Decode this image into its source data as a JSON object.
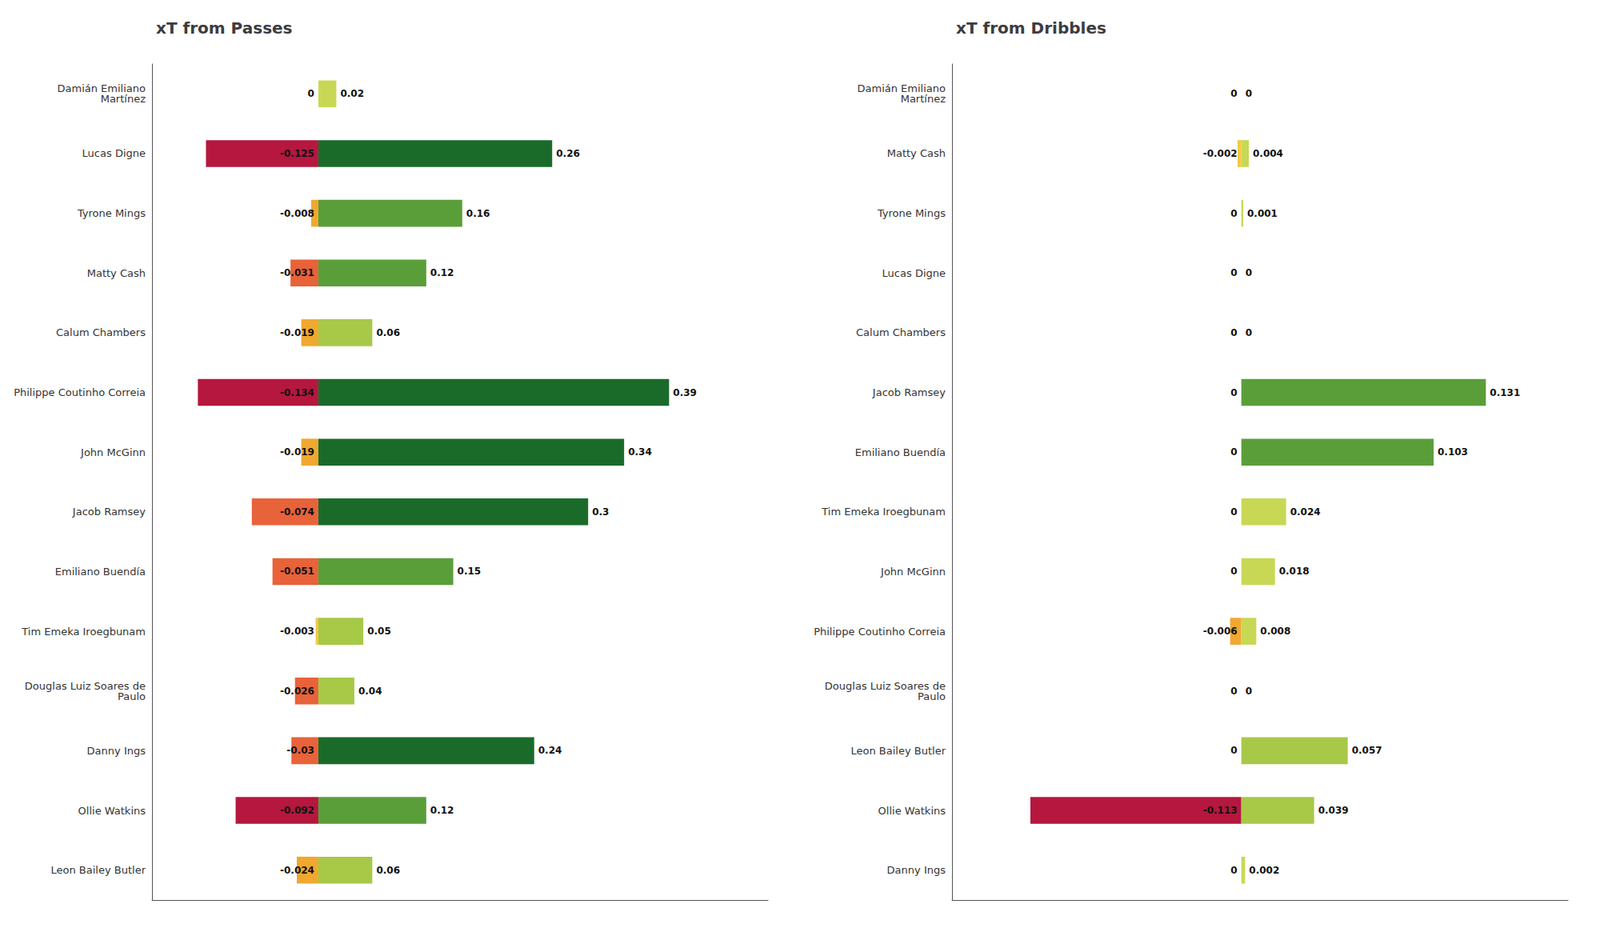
{
  "chart_data": [
    {
      "type": "bar",
      "orientation": "horizontal",
      "title": "xT from Passes",
      "categories": [
        "Damián Emiliano\nMartínez",
        "Lucas Digne",
        "Tyrone Mings",
        "Matty Cash",
        "Calum Chambers",
        "Philippe Coutinho Correia",
        "John McGinn",
        "Jacob Ramsey",
        "Emiliano Buendía",
        "Tim Emeka Iroegbunam",
        "Douglas Luiz Soares de\nPaulo",
        "Danny Ings",
        "Ollie Watkins",
        "Leon Bailey Butler"
      ],
      "series": [
        {
          "values": [
            0,
            -0.125,
            -0.008,
            -0.031,
            -0.019,
            -0.134,
            -0.019,
            -0.074,
            -0.051,
            -0.003,
            -0.026,
            -0.03,
            -0.092,
            -0.024
          ],
          "colors": [
            "#f5c842",
            "#b5173f",
            "#f0a830",
            "#e8623a",
            "#f0a830",
            "#b5173f",
            "#f0a830",
            "#e8623a",
            "#e8623a",
            "#f5c842",
            "#e8623a",
            "#e8623a",
            "#b5173f",
            "#f0a830"
          ]
        },
        {
          "values": [
            0.02,
            0.26,
            0.16,
            0.12,
            0.06,
            0.39,
            0.34,
            0.3,
            0.15,
            0.05,
            0.04,
            0.24,
            0.12,
            0.06
          ],
          "colors": [
            "#c8d855",
            "#1a6b2a",
            "#5a9e3a",
            "#5a9e3a",
            "#a8c848",
            "#1a6b2a",
            "#1a6b2a",
            "#1a6b2a",
            "#5a9e3a",
            "#a8c848",
            "#a8c848",
            "#1a6b2a",
            "#5a9e3a",
            "#a8c848"
          ]
        }
      ],
      "xlim": [
        -0.185,
        0.5
      ],
      "grid": false,
      "tick_labels": "y",
      "data_labels": true
    },
    {
      "type": "bar",
      "orientation": "horizontal",
      "title": "xT from Dribbles",
      "categories": [
        "Damián Emiliano\nMartínez",
        "Matty Cash",
        "Tyrone Mings",
        "Lucas Digne",
        "Calum Chambers",
        "Jacob Ramsey",
        "Emiliano Buendía",
        "Tim Emeka Iroegbunam",
        "John McGinn",
        "Philippe Coutinho Correia",
        "Douglas Luiz Soares de\nPaulo",
        "Leon Bailey Butler",
        "Ollie Watkins",
        "Danny Ings"
      ],
      "series": [
        {
          "values": [
            0,
            -0.002,
            0,
            0,
            0,
            0,
            0,
            0,
            0,
            -0.006,
            0,
            0,
            -0.113,
            0
          ],
          "colors": [
            "#f5c842",
            "#f5c842",
            "#f5c842",
            "#f5c842",
            "#f5c842",
            "#f5c842",
            "#f5c842",
            "#f5c842",
            "#f5c842",
            "#f0a830",
            "#f5c842",
            "#f5c842",
            "#b5173f",
            "#f5c842"
          ]
        },
        {
          "values": [
            0,
            0.004,
            0.001,
            0,
            0,
            0.131,
            0.103,
            0.024,
            0.018,
            0.008,
            0,
            0.057,
            0.039,
            0.002
          ],
          "colors": [
            "#c8d855",
            "#c8d855",
            "#c8d855",
            "#c8d855",
            "#c8d855",
            "#5a9e3a",
            "#5a9e3a",
            "#c8d855",
            "#c8d855",
            "#c8d855",
            "#c8d855",
            "#a8c848",
            "#a8c848",
            "#c8d855"
          ]
        }
      ],
      "xlim": [
        -0.155,
        0.175
      ],
      "grid": false,
      "tick_labels": "y",
      "data_labels": true
    }
  ]
}
